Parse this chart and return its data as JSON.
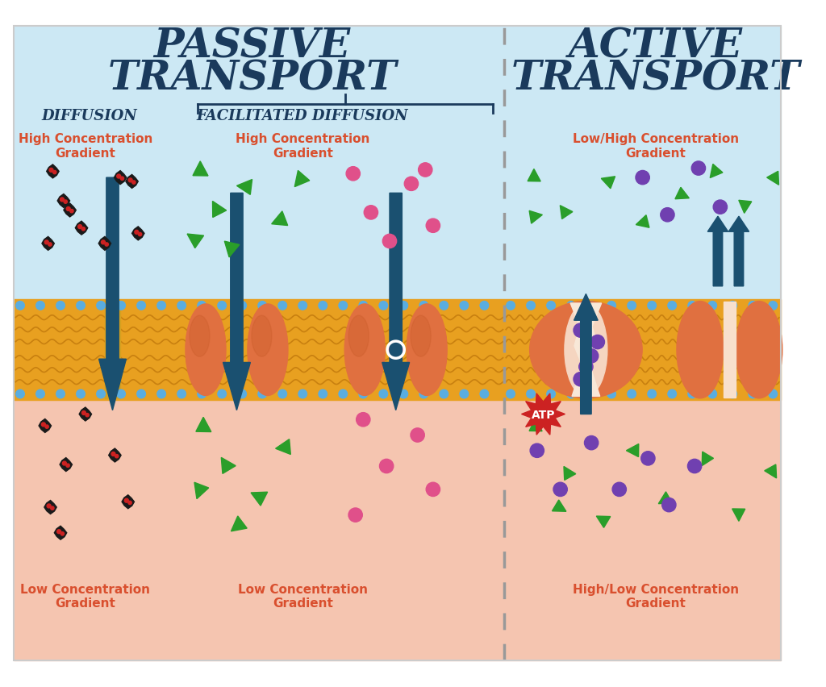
{
  "title_passive": "PASSIVE\nTRANSPORT",
  "title_active": "ACTIVE\nTRANSPORT",
  "title_color": "#1a3a5c",
  "subtitle_diffusion": "DIFFUSION",
  "subtitle_facilitated": "FACILITATED DIFFUSION",
  "subtitle_color": "#1a3a5c",
  "conc_label_color": "#d94f2e",
  "bg_top_color": "#cce8f4",
  "bg_bottom_color": "#f5c5b0",
  "bg_white": "#ffffff",
  "membrane_gold": "#e8a020",
  "membrane_dark": "#c88010",
  "membrane_dots_color": "#5aade0",
  "protein_color": "#e07040",
  "protein_shadow": "#c85a28",
  "arrow_color": "#1a5070",
  "particle_black": "#1a1a1a",
  "particle_red_dot": "#cc2222",
  "particle_green": "#2a9e2a",
  "particle_pink": "#e0508a",
  "particle_purple": "#7040b0",
  "atp_red": "#cc2222",
  "dashed_line_color": "#999999",
  "white": "#ffffff",
  "border_color": "#cccccc"
}
